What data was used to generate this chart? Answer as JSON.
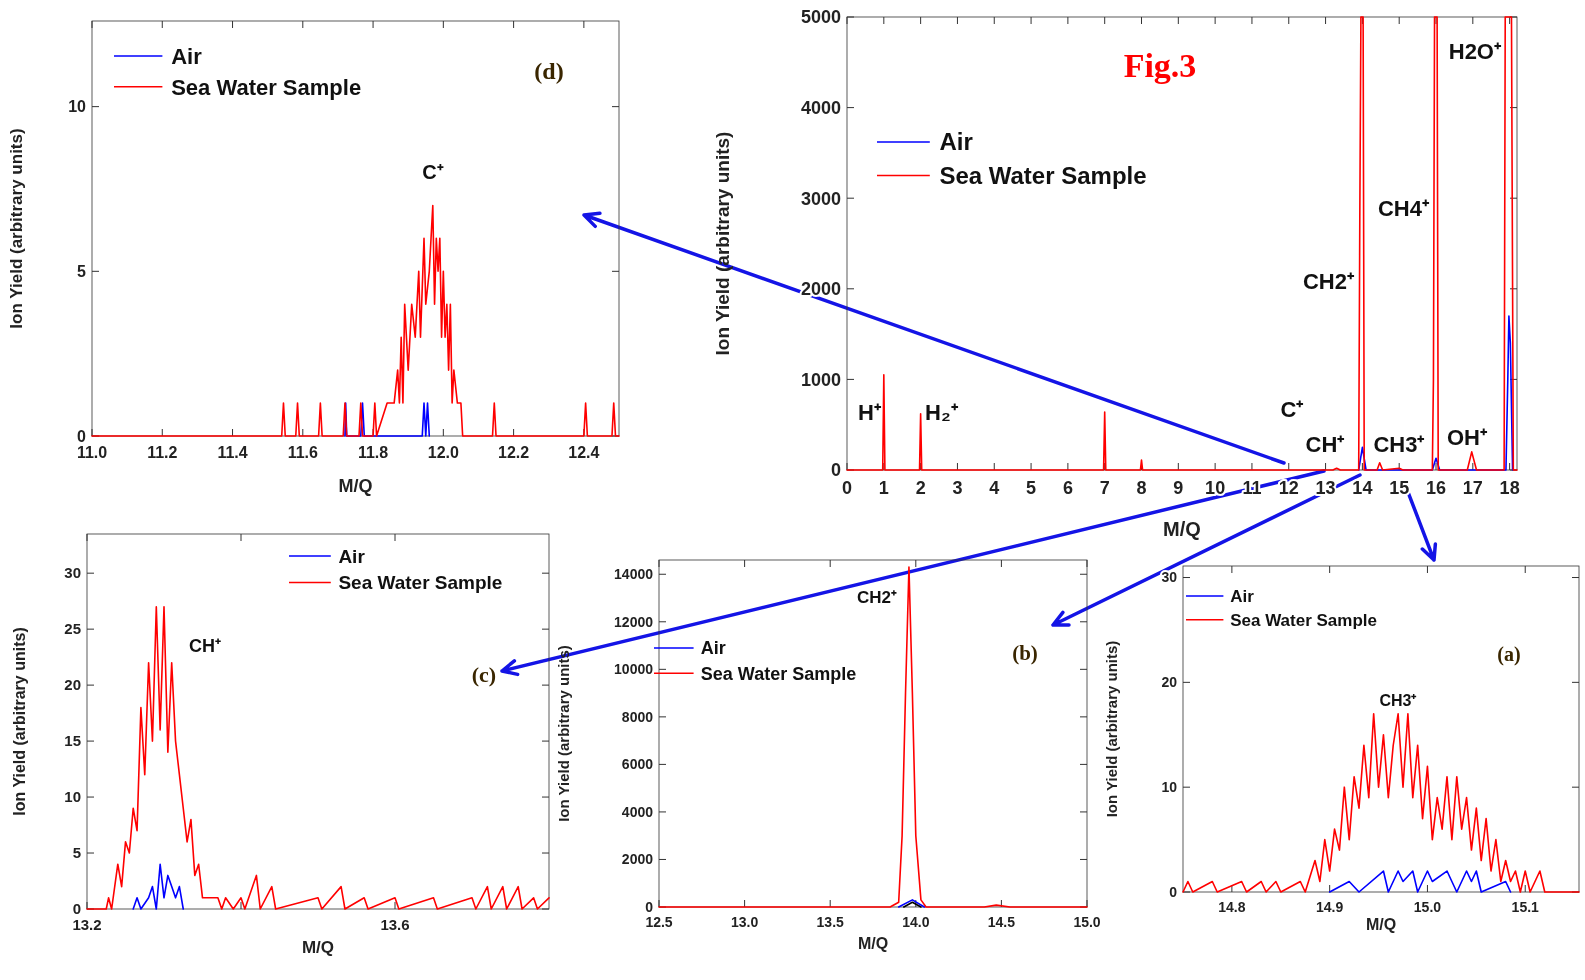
{
  "chart_data": [
    {
      "type": "line",
      "xlabel": "M/Q",
      "ylabel": "Ion Yield (arbitrary units)",
      "legend": "top left",
      "xlim": [
        11,
        12.5
      ],
      "xticks": [
        {
          "value": 11,
          "label": "11.0"
        },
        11.2,
        11.4,
        11.6,
        11.8,
        {
          "value": 12,
          "label": "12.0"
        },
        12.2,
        12.4
      ],
      "ylim": [
        0,
        12.6
      ],
      "yticks": [
        0,
        5,
        10
      ],
      "annotations": [
        "(d)",
        "C⁺"
      ],
      "series": [
        {
          "name": "Air",
          "color": "#0000ff",
          "x": [
            11.72,
            11.722,
            11.725,
            11.765,
            11.77,
            11.775,
            11.94,
            11.945,
            11.95,
            11.955,
            11.96
          ],
          "values": [
            0,
            1,
            0,
            0,
            1,
            0,
            0,
            1,
            0,
            1,
            0
          ]
        },
        {
          "name": "Sea Water Sample",
          "color": "#ff0000",
          "x": [
            11.0,
            11.54,
            11.545,
            11.55,
            11.58,
            11.585,
            11.59,
            11.645,
            11.65,
            11.655,
            11.715,
            11.72,
            11.725,
            11.76,
            11.765,
            11.77,
            11.8,
            11.805,
            11.81,
            11.84,
            11.86,
            11.87,
            11.875,
            11.88,
            11.885,
            11.89,
            11.9,
            11.91,
            11.92,
            11.93,
            11.935,
            11.945,
            11.95,
            11.96,
            11.965,
            11.97,
            11.975,
            11.98,
            11.985,
            11.99,
            11.995,
            12.0,
            12.005,
            12.01,
            12.015,
            12.02,
            12.025,
            12.03,
            12.04,
            12.05,
            12.055,
            12.14,
            12.145,
            12.15,
            12.4,
            12.405,
            12.41,
            12.48,
            12.485,
            12.49,
            12.5
          ],
          "values": [
            0,
            0,
            1,
            0,
            0,
            1,
            0,
            0,
            1,
            0,
            0,
            1,
            0,
            0,
            1,
            0,
            0,
            1,
            0,
            1,
            1,
            2,
            1,
            3,
            1,
            4,
            2,
            4,
            3,
            5,
            3,
            6,
            4,
            5,
            6,
            7,
            4,
            6,
            5,
            6,
            3,
            5,
            3,
            4,
            2,
            4,
            1,
            2,
            1,
            1,
            0,
            0,
            1,
            0,
            0,
            1,
            0,
            0,
            1,
            0,
            0
          ]
        }
      ]
    },
    {
      "type": "line",
      "title": "Fig.3",
      "xlabel": "M/Q",
      "ylabel": "Ion Yield (arbitrary units)",
      "legend": "top left",
      "xlim": [
        0,
        18.2
      ],
      "xticks": [
        0,
        1,
        2,
        3,
        4,
        5,
        6,
        7,
        8,
        9,
        10,
        11,
        12,
        13,
        14,
        15,
        16,
        17,
        18
      ],
      "ylim": [
        0,
        5000
      ],
      "yticks": [
        0,
        1000,
        2000,
        3000,
        4000,
        5000
      ],
      "annotations": [
        "H⁺",
        "H₂⁺",
        "C⁺",
        "CH⁺",
        "CH2⁺",
        "CH3⁺",
        "CH4⁺",
        "OH⁺",
        "H2O⁺"
      ],
      "series": [
        {
          "name": "Air",
          "color": "#0000ff",
          "x": [
            13.9,
            14,
            14.1,
            15.9,
            16,
            16.1,
            17.9,
            17.95,
            17.98,
            18.02,
            18.08
          ],
          "values": [
            0,
            250,
            0,
            0,
            130,
            0,
            0,
            1000,
            1700,
            1400,
            0
          ]
        },
        {
          "name": "Sea Water Sample",
          "color": "#ff0000",
          "x": [
            0,
            0.97,
            1,
            1.03,
            1.97,
            2,
            2.03,
            6.97,
            7,
            7.03,
            7.97,
            8,
            8.03,
            13.2,
            13.3,
            13.4,
            13.9,
            13.93,
            13.96,
            14.02,
            14.05,
            14.4,
            14.47,
            14.55,
            15,
            15.1,
            15.9,
            15.93,
            15.96,
            16.03,
            16.06,
            16.85,
            16.97,
            17.1,
            17.85,
            17.88,
            18.05,
            18.1,
            18.2
          ],
          "values": [
            0,
            0,
            1050,
            0,
            0,
            620,
            0,
            0,
            640,
            0,
            0,
            110,
            0,
            0,
            20,
            0,
            0,
            2800,
            5000,
            5000,
            0,
            0,
            80,
            0,
            20,
            0,
            0,
            1000,
            5000,
            5000,
            0,
            0,
            200,
            0,
            0,
            5000,
            5000,
            0,
            0
          ]
        }
      ]
    },
    {
      "type": "line",
      "xlabel": "M/Q",
      "ylabel": "Ion Yield (arbitrary units)",
      "legend": "top right",
      "xlim": [
        13.2,
        13.8
      ],
      "xticks": [
        13.2,
        {
          "value": 13.4,
          "label": null
        },
        13.6
      ],
      "ylim": [
        0,
        33.5
      ],
      "yticks": [
        0,
        5,
        10,
        15,
        20,
        25,
        30
      ],
      "annotations": [
        "(c)",
        "CH⁺"
      ],
      "series": [
        {
          "name": "Air",
          "color": "#0000ff",
          "x": [
            13.26,
            13.265,
            13.27,
            13.28,
            13.285,
            13.29,
            13.295,
            13.3,
            13.305,
            13.31,
            13.315,
            13.32,
            13.325
          ],
          "values": [
            0,
            1,
            0,
            1,
            2,
            0,
            4,
            1,
            3,
            2,
            1,
            2,
            0
          ]
        },
        {
          "name": "Sea Water Sample",
          "color": "#ff0000",
          "x": [
            13.2,
            13.225,
            13.228,
            13.232,
            13.24,
            13.245,
            13.25,
            13.255,
            13.26,
            13.265,
            13.27,
            13.275,
            13.28,
            13.285,
            13.29,
            13.295,
            13.3,
            13.305,
            13.31,
            13.315,
            13.32,
            13.325,
            13.33,
            13.335,
            13.34,
            13.345,
            13.35,
            13.36,
            13.37,
            13.375,
            13.38,
            13.39,
            13.4,
            13.405,
            13.42,
            13.425,
            13.44,
            13.445,
            13.5,
            13.505,
            13.53,
            13.535,
            13.56,
            13.565,
            13.6,
            13.605,
            13.65,
            13.655,
            13.7,
            13.705,
            13.72,
            13.725,
            13.74,
            13.745,
            13.76,
            13.765,
            13.78,
            13.785,
            13.8
          ],
          "values": [
            0,
            0,
            1,
            0,
            4,
            2,
            6,
            5,
            9,
            7,
            18,
            12,
            22,
            15,
            27,
            16,
            27,
            14,
            22,
            15,
            12,
            9,
            6,
            8,
            3,
            4,
            1,
            1,
            1,
            0,
            1,
            0,
            1,
            0,
            3,
            0,
            2,
            0,
            1,
            0,
            2,
            0,
            1,
            0,
            1,
            0,
            1,
            0,
            1,
            0,
            2,
            0,
            2,
            0,
            2,
            0,
            1,
            0,
            1
          ]
        }
      ]
    },
    {
      "type": "line",
      "xlabel": "M/Q",
      "ylabel": "Ion Yield (arbitrary units)",
      "legend": "top left",
      "xlim": [
        12.5,
        15
      ],
      "xticks": [
        12.5,
        {
          "value": 13,
          "label": "13.0"
        },
        13.5,
        {
          "value": 14,
          "label": "14.0"
        },
        14.5,
        {
          "value": 15,
          "label": "15.0"
        }
      ],
      "ylim": [
        0,
        14600
      ],
      "yticks": [
        0,
        2000,
        4000,
        6000,
        8000,
        10000,
        12000,
        14000
      ],
      "annotations": [
        "(b)",
        "CH2⁺"
      ],
      "series": [
        {
          "name": "Air",
          "color": "#0000ff",
          "x": [
            13.9,
            13.98,
            14.05
          ],
          "values": [
            0,
            300,
            0
          ]
        },
        {
          "name": "Sea Water Sample",
          "color": "#ff0000",
          "x": [
            12.5,
            13.85,
            13.9,
            13.92,
            13.94,
            13.96,
            13.98,
            14.0,
            14.03,
            14.06,
            14.4,
            14.47,
            14.55,
            15
          ],
          "values": [
            0,
            0,
            200,
            3000,
            9000,
            14300,
            9000,
            3000,
            300,
            0,
            0,
            80,
            0,
            0
          ]
        },
        {
          "color": "#000000",
          "x": [
            13.93,
            13.98,
            14.03
          ],
          "values": [
            0,
            200,
            0
          ]
        }
      ]
    },
    {
      "type": "line",
      "xlabel": "M/Q",
      "ylabel": "Ion Yield (arbitrary units)",
      "legend": "top left",
      "xlim": [
        14.75,
        15.155
      ],
      "xticks": [
        14.8,
        14.9,
        {
          "value": 15,
          "label": "15.0"
        },
        15.1
      ],
      "ylim": [
        0,
        31.1
      ],
      "yticks": [
        0,
        10,
        20,
        30
      ],
      "annotations": [
        "(a)",
        "CH3⁺"
      ],
      "series": [
        {
          "name": "Air",
          "color": "#0000ff",
          "x": [
            14.9,
            14.92,
            14.93,
            14.955,
            14.96,
            14.97,
            14.975,
            14.985,
            14.99,
            15.0,
            15.005,
            15.02,
            15.03,
            15.04,
            15.045,
            15.05,
            15.055,
            15.08,
            15.085
          ],
          "values": [
            0,
            1,
            0,
            2,
            0,
            2,
            1,
            2,
            0,
            2,
            1,
            2,
            0,
            2,
            1,
            2,
            0,
            1,
            0
          ]
        },
        {
          "name": "Sea Water Sample",
          "color": "#ff0000",
          "x": [
            14.75,
            14.755,
            14.76,
            14.78,
            14.785,
            14.81,
            14.815,
            14.83,
            14.835,
            14.845,
            14.85,
            14.87,
            14.875,
            14.885,
            14.89,
            14.895,
            14.9,
            14.905,
            14.91,
            14.915,
            14.92,
            14.925,
            14.93,
            14.935,
            14.94,
            14.945,
            14.95,
            14.955,
            14.96,
            14.965,
            14.97,
            14.975,
            14.98,
            14.985,
            14.99,
            14.995,
            15.0,
            15.005,
            15.01,
            15.015,
            15.02,
            15.025,
            15.03,
            15.035,
            15.04,
            15.045,
            15.05,
            15.055,
            15.06,
            15.065,
            15.07,
            15.075,
            15.08,
            15.085,
            15.09,
            15.095,
            15.1,
            15.105,
            15.115,
            15.12,
            15.155
          ],
          "values": [
            0,
            1,
            0,
            1,
            0,
            1,
            0,
            1,
            0,
            1,
            0,
            1,
            0,
            3,
            1,
            5,
            2,
            6,
            4,
            10,
            5,
            11,
            8,
            14,
            9,
            17,
            10,
            15,
            9,
            14,
            17,
            10,
            17,
            9,
            14,
            7,
            12,
            5,
            9,
            6,
            11,
            5,
            11,
            6,
            9,
            4,
            8,
            3,
            7,
            2,
            5,
            1,
            3,
            1,
            2,
            0,
            2,
            0,
            2,
            0,
            0
          ]
        }
      ]
    }
  ]
}
